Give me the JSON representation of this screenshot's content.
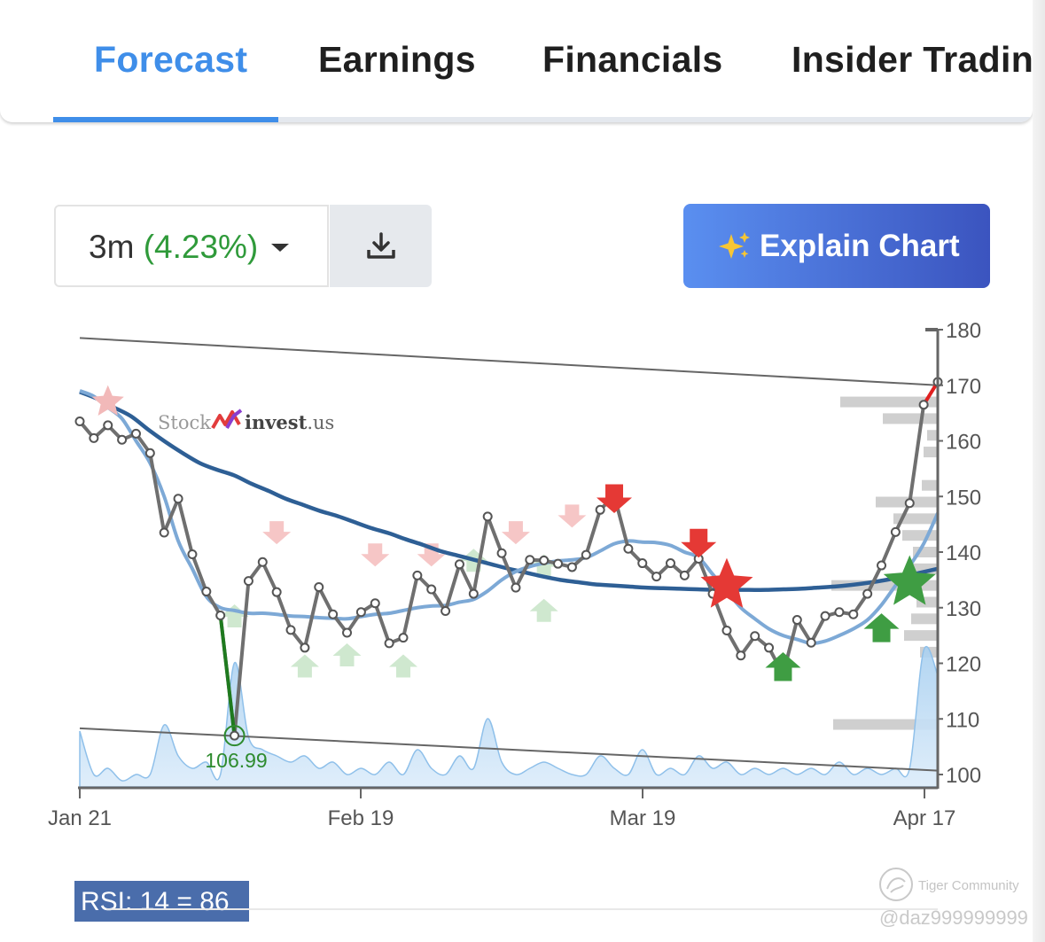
{
  "tabs": [
    {
      "label": "Forecast",
      "active": true
    },
    {
      "label": "Earnings",
      "active": false
    },
    {
      "label": "Financials",
      "active": false
    },
    {
      "label": "Insider Trading",
      "active": false
    }
  ],
  "controls": {
    "period": "3m",
    "period_change": "(4.23%)",
    "explain_label": "Explain Chart"
  },
  "watermark": {
    "part1": "Stock",
    "part2": "invest",
    "part3": ".us"
  },
  "indicator": {
    "label": "RSI: 14 = 86"
  },
  "footer": {
    "brand": "Tiger Community",
    "user": "@daz999999999"
  },
  "colors": {
    "accent": "#3f8ee9",
    "positive": "#2f9a3a",
    "price_line": "#6f6f6f",
    "ma_short": "#7da9d6",
    "ma_long": "#2e5f95",
    "sell_signal": "#e53935",
    "buy_signal": "#3f9d43",
    "volume_fill": "#a9d0f0"
  },
  "icons": {
    "dropdown": "caret-down-icon",
    "download": "download-icon",
    "explain": "sparkle-icon"
  },
  "chart_data": {
    "type": "line",
    "title": "",
    "xlabel": "",
    "ylabel": "",
    "ylim": [
      100,
      180
    ],
    "y_ticks": [
      180,
      170,
      160,
      150,
      140,
      130,
      120,
      110,
      100
    ],
    "x_ticks": [
      "Jan 21",
      "Feb 19",
      "Mar 19",
      "Apr 17"
    ],
    "price": [
      163.5,
      160.5,
      162.8,
      160.2,
      161.3,
      157.8,
      143.5,
      149.6,
      139.6,
      132.9,
      128.6,
      106.99,
      134.8,
      138.2,
      132.8,
      126.0,
      122.8,
      133.7,
      128.8,
      125.5,
      129.2,
      130.8,
      123.6,
      124.6,
      135.8,
      133.3,
      129.4,
      137.8,
      132.5,
      146.4,
      139.8,
      133.6,
      138.6,
      138.5,
      137.9,
      137.3,
      139.5,
      147.6,
      150.2,
      140.6,
      138.0,
      135.6,
      138.0,
      135.8,
      138.8,
      132.5,
      125.9,
      121.4,
      124.9,
      122.8,
      118.0,
      127.8,
      123.7,
      128.5,
      129.2,
      128.8,
      132.5,
      137.6,
      143.6,
      148.8,
      166.5,
      170.6
    ],
    "ma_short": [
      169.0,
      168.0,
      166.0,
      164.0,
      160.0,
      156.0,
      150.0,
      142.0,
      137.0,
      132.0,
      130.0,
      129.5,
      129.0,
      129.0,
      128.8,
      128.5,
      128.4,
      128.2,
      128.1,
      128.0,
      128.4,
      128.8,
      129.0,
      129.5,
      130.0,
      130.3,
      130.4,
      131.0,
      131.5,
      133.0,
      135.0,
      136.5,
      137.4,
      138.0,
      138.4,
      138.6,
      139.0,
      140.2,
      141.5,
      142.0,
      141.8,
      141.7,
      141.2,
      140.0,
      139.0,
      136.0,
      133.0,
      130.0,
      128.0,
      126.2,
      125.0,
      124.3,
      123.6,
      124.0,
      125.0,
      126.2,
      127.8,
      130.5,
      134.0,
      137.5,
      141.5,
      147.0
    ],
    "ma_long": [
      168.8,
      167.6,
      166.0,
      164.4,
      162.0,
      159.8,
      157.8,
      156.0,
      154.8,
      153.8,
      152.3,
      151.0,
      149.6,
      148.5,
      147.4,
      146.5,
      145.4,
      144.3,
      143.4,
      142.3,
      141.3,
      140.2,
      139.4,
      138.6,
      137.8,
      137.0,
      136.3,
      135.6,
      135.0,
      134.6,
      134.2,
      134.0,
      133.8,
      133.6,
      133.5,
      133.4,
      133.3,
      133.2,
      133.2,
      133.2,
      133.2,
      133.3,
      133.4,
      133.6,
      133.8,
      134.1,
      134.5,
      135.0,
      135.6,
      136.3,
      137.0
    ],
    "channel_upper": [
      [
        0,
        178.5
      ],
      [
        61,
        170.0
      ]
    ],
    "channel_lower": [
      [
        0,
        108.3
      ],
      [
        61,
        100.7
      ]
    ],
    "annotations": [
      {
        "x_index": 11,
        "y": 106.99,
        "label": "106.99"
      }
    ],
    "sell_signals": [
      {
        "x_index": 38,
        "y": 149.0
      },
      {
        "x_index": 44,
        "y": 141.0
      }
    ],
    "buy_signals": [
      {
        "x_index": 50,
        "y": 120.0
      },
      {
        "x_index": 57,
        "y": 127.0
      }
    ],
    "star_signals": [
      {
        "x_index": 46,
        "y": 134.0,
        "color": "red"
      },
      {
        "x_index": 59,
        "y": 134.5,
        "color": "green"
      },
      {
        "x_index": 2,
        "y": 167.0,
        "color": "pink"
      }
    ],
    "grid": false,
    "legend": "none"
  }
}
